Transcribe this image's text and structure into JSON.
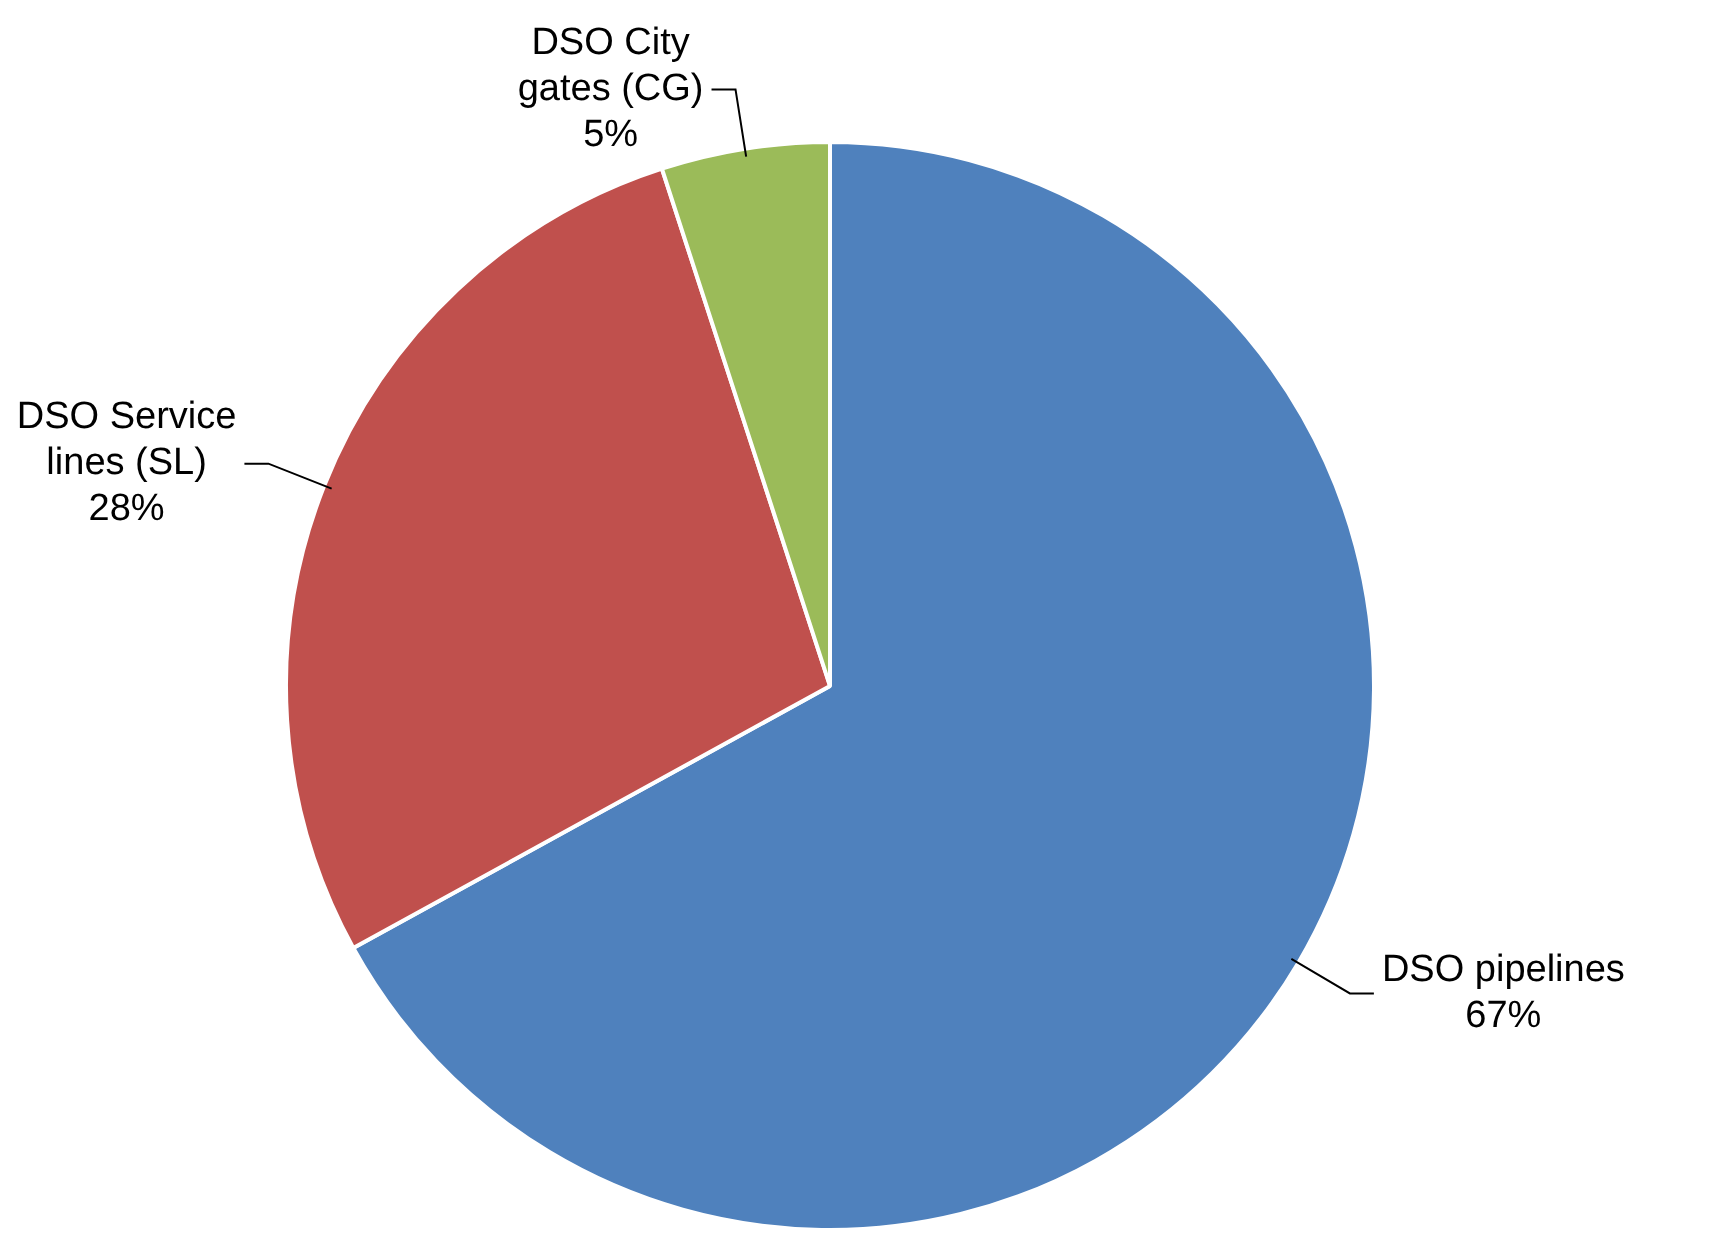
{
  "chart_data": {
    "type": "pie",
    "categories": [
      "DSO pipelines",
      "DSO Service lines (SL)",
      "DSO City gates (CG)"
    ],
    "values": [
      67,
      28,
      5
    ],
    "colors": [
      "#4f81bd",
      "#c0504d",
      "#9bbb59"
    ],
    "value_labels": [
      "67%",
      "28%",
      "5%"
    ],
    "legend": false
  }
}
